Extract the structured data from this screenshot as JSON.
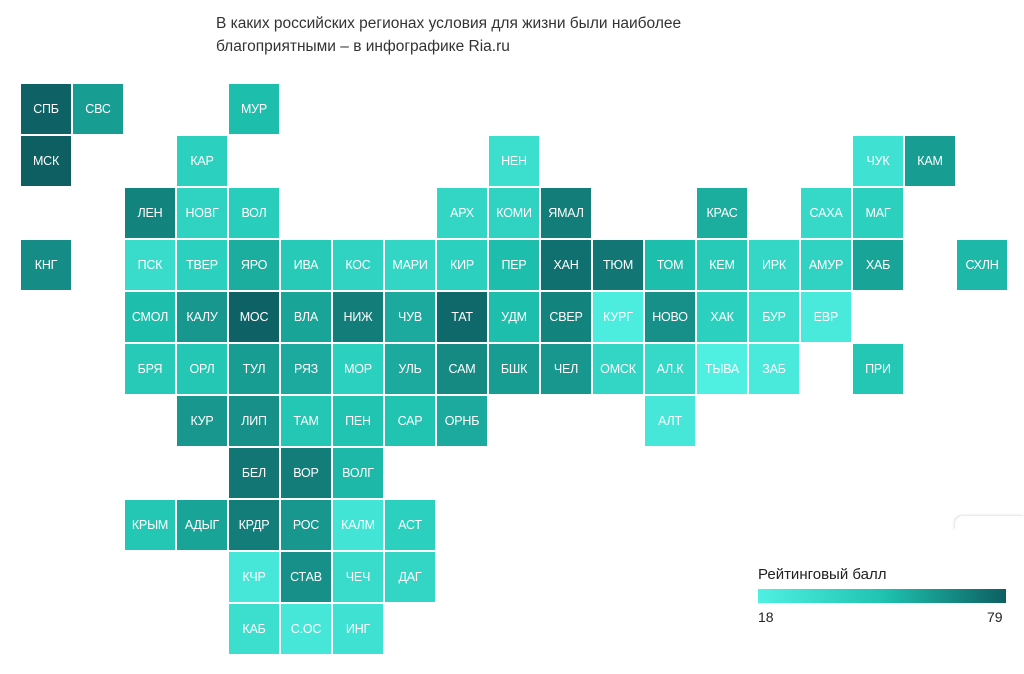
{
  "title": {
    "line1": "В каких российских регионах условия для жизни были наиболее",
    "line2": "благоприятными – в инфографике Ria.ru"
  },
  "chart_data": {
    "type": "heatmap",
    "title": "В каких российских регионах условия для жизни были наиболее благоприятными – в инфографике Ria.ru",
    "legend": {
      "title": "Рейтинговый балл",
      "min": "18",
      "max": "79"
    },
    "colors": {
      "low": "#4ff0e2",
      "mid": "#1fc3b0",
      "high": "#0d5f62"
    },
    "tiles": [
      {
        "label": "СПБ",
        "col": 0,
        "row": 0,
        "score": 78
      },
      {
        "label": "СВС",
        "col": 1,
        "row": 0,
        "score": 60
      },
      {
        "label": "МУР",
        "col": 4,
        "row": 0,
        "score": 50
      },
      {
        "label": "МСК",
        "col": 0,
        "row": 1,
        "score": 79
      },
      {
        "label": "КАР",
        "col": 3,
        "row": 1,
        "score": 40
      },
      {
        "label": "НЕН",
        "col": 9,
        "row": 1,
        "score": 30
      },
      {
        "label": "ЧУК",
        "col": 16,
        "row": 1,
        "score": 28
      },
      {
        "label": "КАМ",
        "col": 17,
        "row": 1,
        "score": 60
      },
      {
        "label": "ЛЕН",
        "col": 2,
        "row": 2,
        "score": 68
      },
      {
        "label": "НОВГ",
        "col": 3,
        "row": 2,
        "score": 38
      },
      {
        "label": "ВОЛ",
        "col": 4,
        "row": 2,
        "score": 42
      },
      {
        "label": "АРХ",
        "col": 8,
        "row": 2,
        "score": 36
      },
      {
        "label": "КОМИ",
        "col": 9,
        "row": 2,
        "score": 38
      },
      {
        "label": "ЯМАЛ",
        "col": 10,
        "row": 2,
        "score": 70
      },
      {
        "label": "КРАС",
        "col": 13,
        "row": 2,
        "score": 55
      },
      {
        "label": "САХА",
        "col": 15,
        "row": 2,
        "score": 34
      },
      {
        "label": "МАГ",
        "col": 16,
        "row": 2,
        "score": 40
      },
      {
        "label": "КНГ",
        "col": 0,
        "row": 3,
        "score": 65
      },
      {
        "label": "ПСК",
        "col": 2,
        "row": 3,
        "score": 32
      },
      {
        "label": "ТВЕР",
        "col": 3,
        "row": 3,
        "score": 40
      },
      {
        "label": "ЯРО",
        "col": 4,
        "row": 3,
        "score": 55
      },
      {
        "label": "ИВА",
        "col": 5,
        "row": 3,
        "score": 44
      },
      {
        "label": "КОС",
        "col": 6,
        "row": 3,
        "score": 38
      },
      {
        "label": "МАРИ",
        "col": 7,
        "row": 3,
        "score": 36
      },
      {
        "label": "КИР",
        "col": 8,
        "row": 3,
        "score": 40
      },
      {
        "label": "ПЕР",
        "col": 9,
        "row": 3,
        "score": 50
      },
      {
        "label": "ХАН",
        "col": 10,
        "row": 3,
        "score": 74
      },
      {
        "label": "ТЮМ",
        "col": 11,
        "row": 3,
        "score": 72
      },
      {
        "label": "ТОМ",
        "col": 12,
        "row": 3,
        "score": 50
      },
      {
        "label": "КЕМ",
        "col": 13,
        "row": 3,
        "score": 44
      },
      {
        "label": "ИРК",
        "col": 14,
        "row": 3,
        "score": 35
      },
      {
        "label": "АМУР",
        "col": 15,
        "row": 3,
        "score": 38
      },
      {
        "label": "ХАБ",
        "col": 16,
        "row": 3,
        "score": 58
      },
      {
        "label": "СХЛН",
        "col": 18,
        "row": 3,
        "score": 52
      },
      {
        "label": "СМОЛ",
        "col": 2,
        "row": 4,
        "score": 50
      },
      {
        "label": "КАЛУ",
        "col": 3,
        "row": 4,
        "score": 62
      },
      {
        "label": "МОС",
        "col": 4,
        "row": 4,
        "score": 78
      },
      {
        "label": "ВЛА",
        "col": 5,
        "row": 4,
        "score": 58
      },
      {
        "label": "НИЖ",
        "col": 6,
        "row": 4,
        "score": 70
      },
      {
        "label": "ЧУВ",
        "col": 7,
        "row": 4,
        "score": 56
      },
      {
        "label": "ТАТ",
        "col": 8,
        "row": 4,
        "score": 76
      },
      {
        "label": "УДМ",
        "col": 9,
        "row": 4,
        "score": 50
      },
      {
        "label": "СВЕР",
        "col": 10,
        "row": 4,
        "score": 68
      },
      {
        "label": "КУРГ",
        "col": 11,
        "row": 4,
        "score": 20
      },
      {
        "label": "НОВО",
        "col": 12,
        "row": 4,
        "score": 64
      },
      {
        "label": "ХАК",
        "col": 13,
        "row": 4,
        "score": 40
      },
      {
        "label": "БУР",
        "col": 14,
        "row": 4,
        "score": 30
      },
      {
        "label": "ЕВР",
        "col": 15,
        "row": 4,
        "score": 22
      },
      {
        "label": "БРЯ",
        "col": 2,
        "row": 5,
        "score": 44
      },
      {
        "label": "ОРЛ",
        "col": 3,
        "row": 5,
        "score": 46
      },
      {
        "label": "ТУЛ",
        "col": 4,
        "row": 5,
        "score": 60
      },
      {
        "label": "РЯЗ",
        "col": 5,
        "row": 5,
        "score": 56
      },
      {
        "label": "МОР",
        "col": 6,
        "row": 5,
        "score": 40
      },
      {
        "label": "УЛЬ",
        "col": 7,
        "row": 5,
        "score": 56
      },
      {
        "label": "САМ",
        "col": 8,
        "row": 5,
        "score": 66
      },
      {
        "label": "БШК",
        "col": 9,
        "row": 5,
        "score": 60
      },
      {
        "label": "ЧЕЛ",
        "col": 10,
        "row": 5,
        "score": 62
      },
      {
        "label": "ОМСК",
        "col": 11,
        "row": 5,
        "score": 36
      },
      {
        "label": "АЛ.К",
        "col": 12,
        "row": 5,
        "score": 34
      },
      {
        "label": "ТЫВА",
        "col": 13,
        "row": 5,
        "score": 18
      },
      {
        "label": "ЗАБ",
        "col": 14,
        "row": 5,
        "score": 22
      },
      {
        "label": "ПРИ",
        "col": 16,
        "row": 5,
        "score": 46
      },
      {
        "label": "КУР",
        "col": 3,
        "row": 6,
        "score": 62
      },
      {
        "label": "ЛИП",
        "col": 4,
        "row": 6,
        "score": 64
      },
      {
        "label": "ТАМ",
        "col": 5,
        "row": 6,
        "score": 46
      },
      {
        "label": "ПЕН",
        "col": 6,
        "row": 6,
        "score": 48
      },
      {
        "label": "САР",
        "col": 7,
        "row": 6,
        "score": 48
      },
      {
        "label": "ОРНБ",
        "col": 8,
        "row": 6,
        "score": 56
      },
      {
        "label": "АЛТ",
        "col": 12,
        "row": 6,
        "score": 24
      },
      {
        "label": "БЕЛ",
        "col": 4,
        "row": 7,
        "score": 72
      },
      {
        "label": "ВОР",
        "col": 5,
        "row": 7,
        "score": 70
      },
      {
        "label": "ВОЛГ",
        "col": 6,
        "row": 7,
        "score": 52
      },
      {
        "label": "КРЫМ",
        "col": 2,
        "row": 8,
        "score": 46
      },
      {
        "label": "АДЫГ",
        "col": 3,
        "row": 8,
        "score": 58
      },
      {
        "label": "КРДР",
        "col": 4,
        "row": 8,
        "score": 70
      },
      {
        "label": "РОС",
        "col": 5,
        "row": 8,
        "score": 62
      },
      {
        "label": "КАЛМ",
        "col": 6,
        "row": 8,
        "score": 26
      },
      {
        "label": "АСТ",
        "col": 7,
        "row": 8,
        "score": 40
      },
      {
        "label": "КЧР",
        "col": 4,
        "row": 9,
        "score": 24
      },
      {
        "label": "СТАВ",
        "col": 5,
        "row": 9,
        "score": 64
      },
      {
        "label": "ЧЕЧ",
        "col": 6,
        "row": 9,
        "score": 32
      },
      {
        "label": "ДАГ",
        "col": 7,
        "row": 9,
        "score": 36
      },
      {
        "label": "КАБ",
        "col": 4,
        "row": 10,
        "score": 30
      },
      {
        "label": "С.ОС",
        "col": 5,
        "row": 10,
        "score": 24
      },
      {
        "label": "ИНГ",
        "col": 6,
        "row": 10,
        "score": 28
      }
    ]
  }
}
